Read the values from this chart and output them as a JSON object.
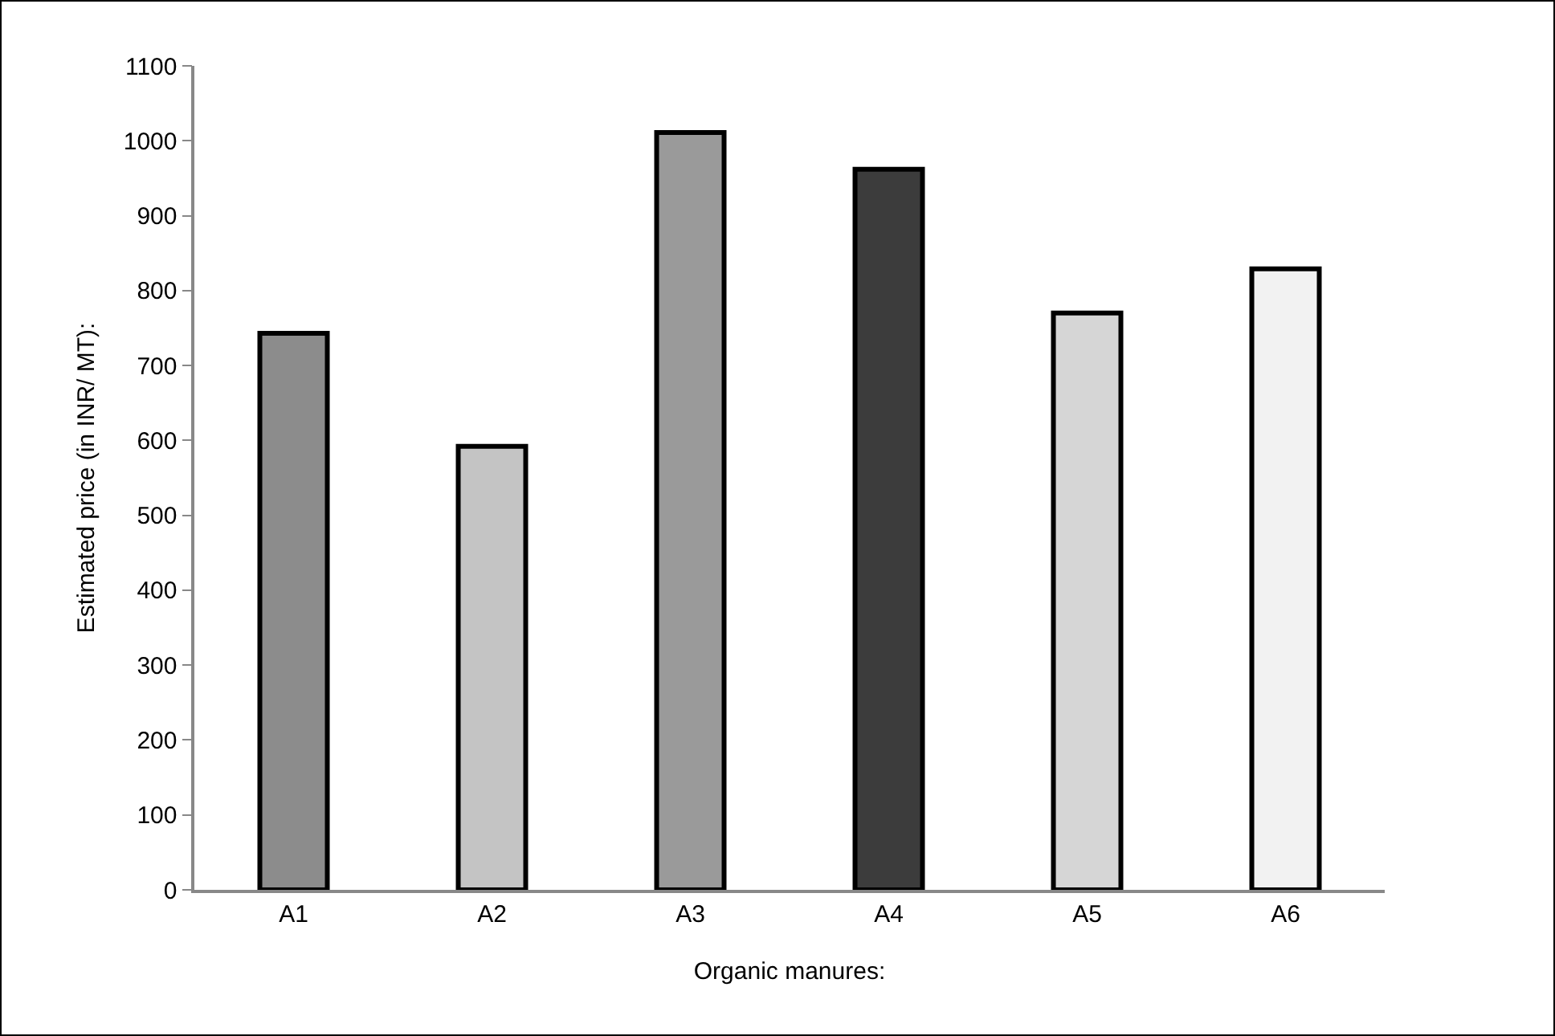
{
  "chart_data": {
    "type": "bar",
    "xlabel": "Organic manures:",
    "ylabel": "Estimated price (in INR/ MT):",
    "categories": [
      "A1",
      "A2",
      "A3",
      "A4",
      "A5",
      "A6"
    ],
    "values": [
      743,
      592,
      1011,
      962,
      770,
      829
    ],
    "colors": [
      "#8c8c8c",
      "#c4c4c4",
      "#9a9a9a",
      "#3c3c3c",
      "#d6d6d6",
      "#f2f2f2"
    ],
    "ylim": [
      0,
      1100
    ],
    "yticks": [
      0,
      100,
      200,
      300,
      400,
      500,
      600,
      700,
      800,
      900,
      1000,
      1100
    ],
    "grid": false,
    "legend": false
  }
}
